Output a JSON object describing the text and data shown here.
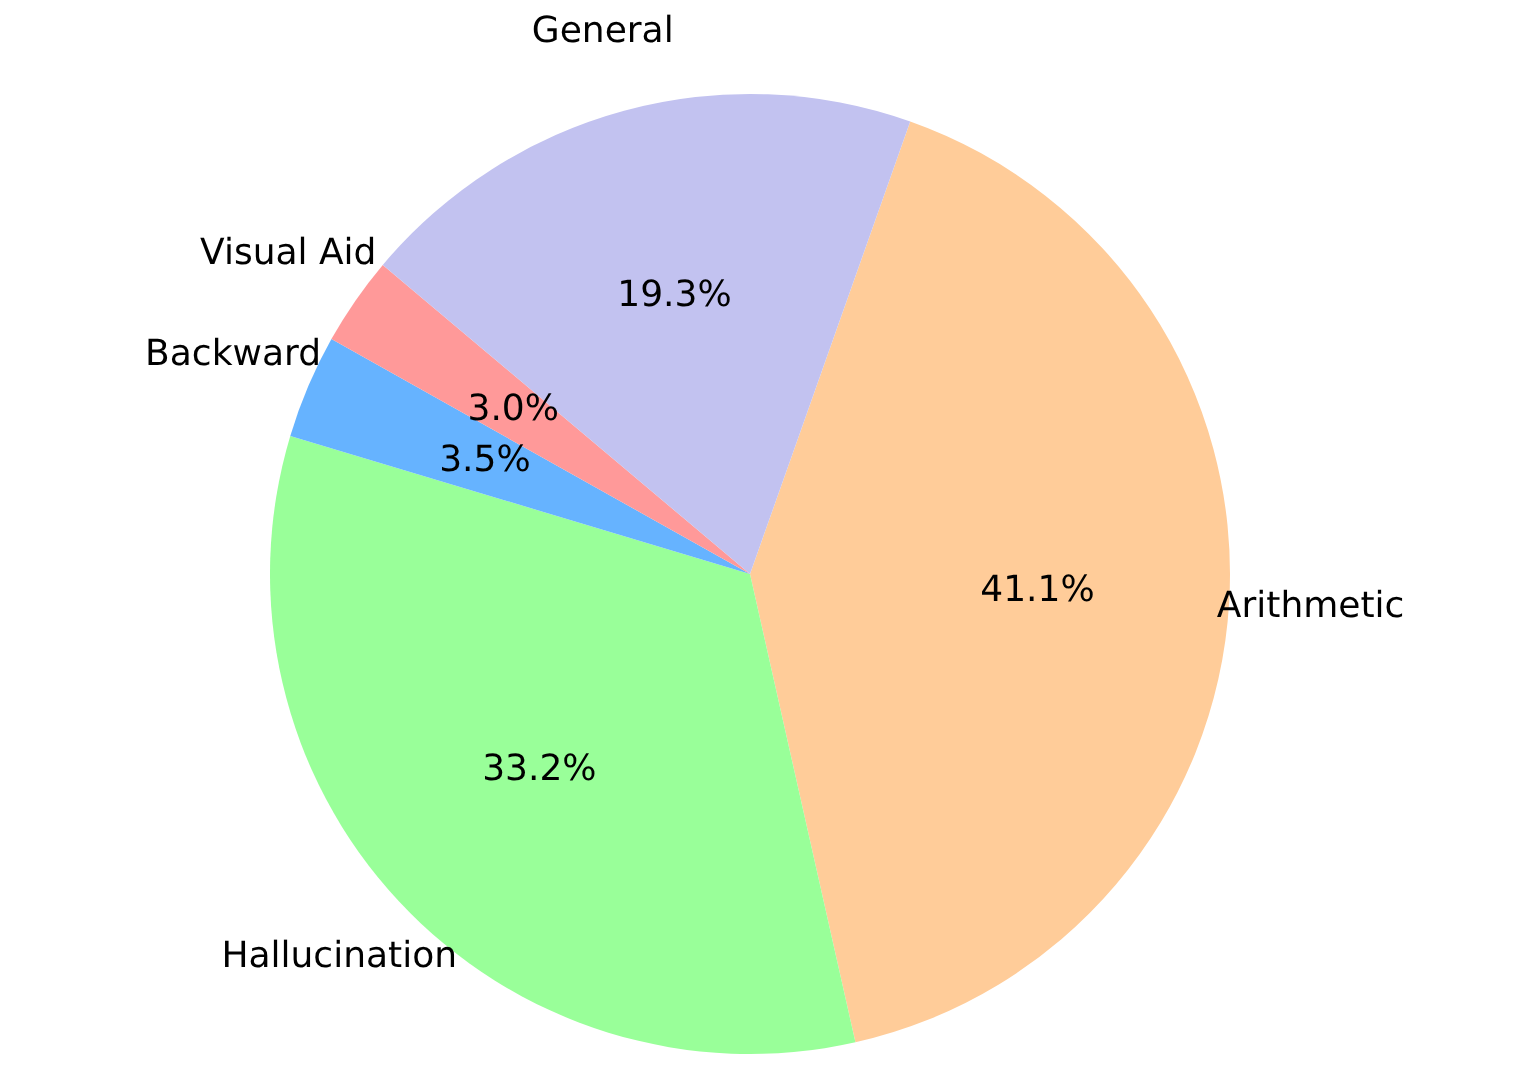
{
  "chart_data": {
    "type": "pie",
    "categories": [
      "Arithmetic",
      "Hallucination",
      "Backward",
      "Visual Aid",
      "General"
    ],
    "values": [
      41.1,
      33.2,
      3.5,
      3.0,
      19.3
    ],
    "colors": [
      "#ffcc99",
      "#99ff99",
      "#66b3ff",
      "#ff9999",
      "#c2c2f0"
    ],
    "value_labels": [
      "41.1%",
      "33.2%",
      "3.5%",
      "3.0%",
      "19.3%"
    ]
  }
}
